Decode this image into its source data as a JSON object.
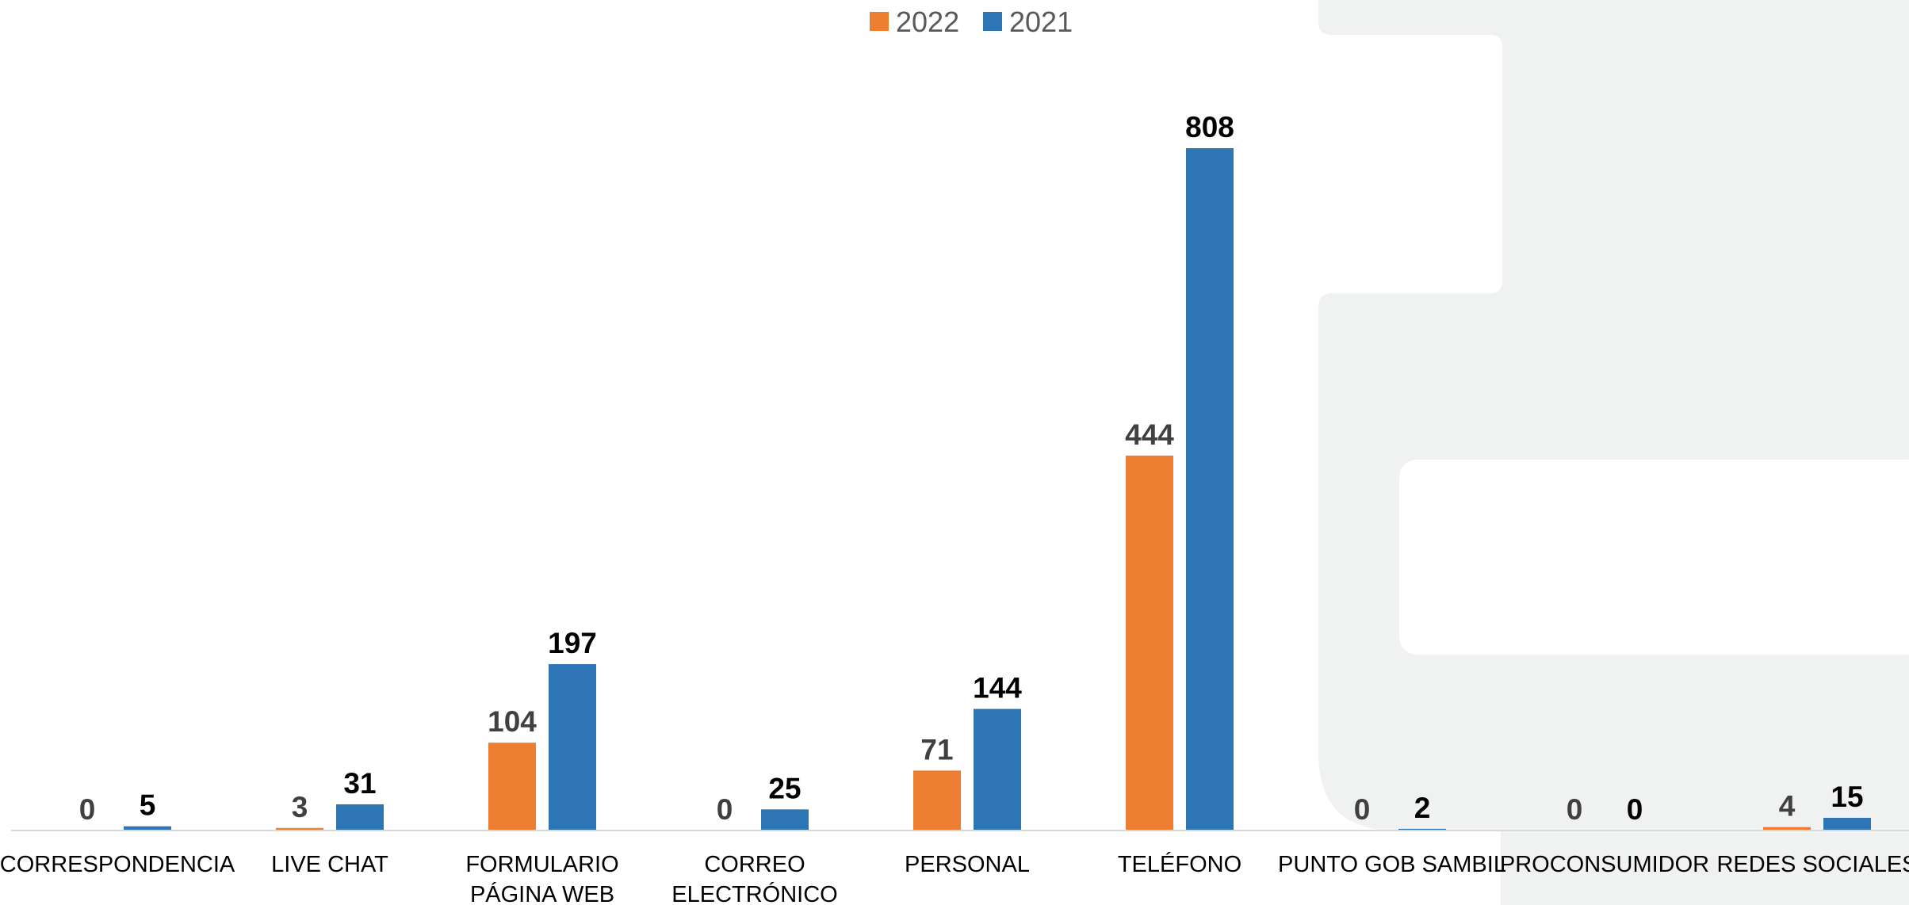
{
  "chart_data": {
    "type": "bar",
    "categories": [
      [
        "CORRESPONDENCIA"
      ],
      [
        "LIVE CHAT"
      ],
      [
        "FORMULARIO",
        "PÁGINA WEB"
      ],
      [
        "CORREO",
        "ELECTRÓNICO"
      ],
      [
        "PERSONAL"
      ],
      [
        "TELÉFONO"
      ],
      [
        "PUNTO GOB SAMBIL"
      ],
      [
        "PROCONSUMIDOR"
      ],
      [
        "REDES SOCIALES"
      ]
    ],
    "series": [
      {
        "name": "2022",
        "color": "#ED7D31",
        "label_color": "#404040",
        "values": [
          0,
          3,
          104,
          0,
          71,
          444,
          0,
          0,
          4
        ]
      },
      {
        "name": "2021",
        "color": "#2E75B6",
        "label_color": "#000000",
        "values": [
          5,
          31,
          197,
          25,
          144,
          808,
          2,
          0,
          15
        ]
      }
    ],
    "ylim": [
      0,
      808
    ],
    "grid": false,
    "legend_position": "top-center",
    "background_colors": {
      "panel": "#F0F1F1",
      "page": "#FFFFFF",
      "axis": "#D9D9D9"
    }
  }
}
